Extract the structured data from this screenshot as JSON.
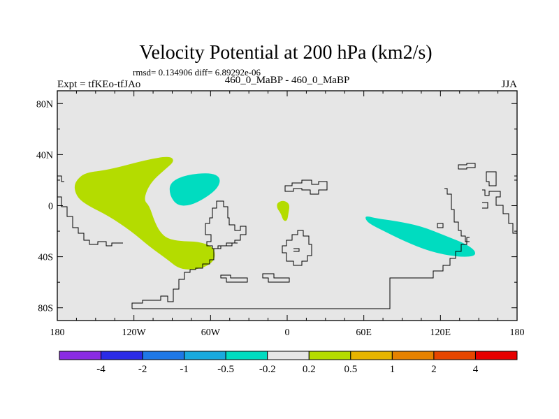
{
  "chart_data": {
    "type": "heatmap",
    "title": "Velocity Potential at 200 hPa (km2/s)",
    "stats_text": "rmsd= 0.134906 diff= 6.89292e-06",
    "left_label": "Expt = tfKEo-tfJAo",
    "center_label": "460_0_MaBP - 460_0_MaBP",
    "right_label": "JJA",
    "xlim": [
      -180,
      180
    ],
    "ylim": [
      -90,
      90
    ],
    "x_ticks": [
      {
        "value": -180,
        "label": "180"
      },
      {
        "value": -120,
        "label": "120W"
      },
      {
        "value": -60,
        "label": "60W"
      },
      {
        "value": 0,
        "label": "0"
      },
      {
        "value": 60,
        "label": "60E"
      },
      {
        "value": 120,
        "label": "120E"
      },
      {
        "value": 180,
        "label": "180"
      }
    ],
    "y_ticks": [
      {
        "value": 80,
        "label": "80N"
      },
      {
        "value": 40,
        "label": "40N"
      },
      {
        "value": 0,
        "label": "0"
      },
      {
        "value": -40,
        "label": "40S"
      },
      {
        "value": -80,
        "label": "80S"
      }
    ],
    "background_color": "#e6e6e6",
    "colorbar": {
      "colors": [
        "#8a2be2",
        "#2b2be6",
        "#1e78e6",
        "#19aade",
        "#00dcc0",
        "#e6e6e6",
        "#b4dc00",
        "#e6b400",
        "#e68200",
        "#e64600",
        "#e60000"
      ],
      "labels": [
        "-4",
        "-2",
        "-1",
        "-0.5",
        "-0.2",
        "0.2",
        "0.5",
        "1",
        "2",
        "4"
      ]
    },
    "regions": [
      {
        "name": "positive anomaly, North Pacific / North America",
        "color": "#b4dc00",
        "points": [
          [
            -165,
            20
          ],
          [
            -158,
            26
          ],
          [
            -140,
            28
          ],
          [
            -110,
            36
          ],
          [
            -92,
            39
          ],
          [
            -88,
            35
          ],
          [
            -96,
            28
          ],
          [
            -105,
            20
          ],
          [
            -110,
            12
          ],
          [
            -112,
            4
          ],
          [
            -108,
            0
          ],
          [
            -104,
            -12
          ],
          [
            -100,
            -20
          ],
          [
            -94,
            -26
          ],
          [
            -82,
            -28
          ],
          [
            -70,
            -28
          ],
          [
            -58,
            -32
          ],
          [
            -56,
            -40
          ],
          [
            -60,
            -46
          ],
          [
            -70,
            -50
          ],
          [
            -84,
            -50
          ],
          [
            -94,
            -42
          ],
          [
            -108,
            -32
          ],
          [
            -122,
            -20
          ],
          [
            -140,
            -8
          ],
          [
            -156,
            0
          ],
          [
            -164,
            6
          ],
          [
            -167,
            14
          ]
        ]
      },
      {
        "name": "positive anomaly, equatorial Atlantic",
        "color": "#b4dc00",
        "points": [
          [
            -8,
            2
          ],
          [
            -4,
            4
          ],
          [
            0,
            3
          ],
          [
            2,
            0
          ],
          [
            1,
            -6
          ],
          [
            0,
            -12
          ],
          [
            -3,
            -12
          ],
          [
            -5,
            -6
          ],
          [
            -8,
            -2
          ]
        ]
      },
      {
        "name": "negative anomaly, North Atlantic",
        "color": "#00dcc0",
        "points": [
          [
            -92,
            18
          ],
          [
            -80,
            24
          ],
          [
            -60,
            26
          ],
          [
            -52,
            22
          ],
          [
            -54,
            14
          ],
          [
            -64,
            6
          ],
          [
            -76,
            0
          ],
          [
            -86,
            0
          ],
          [
            -92,
            8
          ]
        ]
      },
      {
        "name": "negative anomaly, Indian Ocean",
        "color": "#00dcc0",
        "points": [
          [
            62,
            -8
          ],
          [
            70,
            -10
          ],
          [
            85,
            -12
          ],
          [
            105,
            -16
          ],
          [
            125,
            -24
          ],
          [
            140,
            -30
          ],
          [
            148,
            -36
          ],
          [
            146,
            -40
          ],
          [
            132,
            -40
          ],
          [
            112,
            -36
          ],
          [
            92,
            -28
          ],
          [
            76,
            -20
          ],
          [
            64,
            -14
          ],
          [
            61,
            -10
          ]
        ]
      }
    ]
  }
}
